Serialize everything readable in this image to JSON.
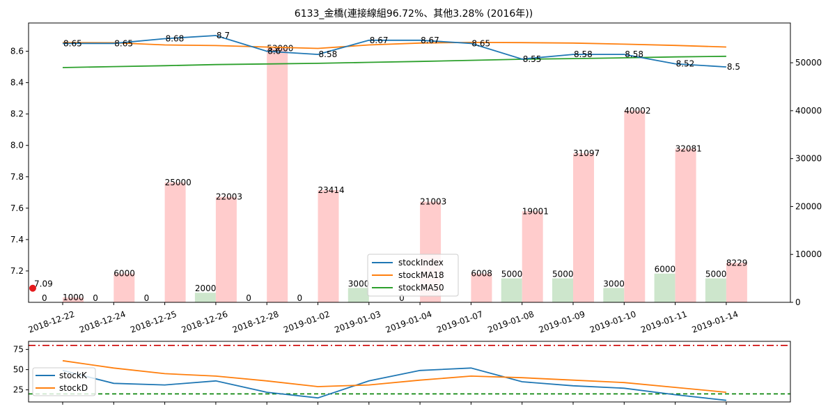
{
  "chart_data": [
    {
      "type": "bar+line",
      "title": "6133_金橋(連接線組96.72%、其他3.28% (2016年))",
      "categories": [
        "2018-12-22",
        "2018-12-24",
        "2018-12-25",
        "2018-12-26",
        "2018-12-28",
        "2019-01-02",
        "2019-01-03",
        "2019-01-04",
        "2019-01-07",
        "2019-01-08",
        "2019-01-09",
        "2019-01-10",
        "2019-01-11",
        "2019-01-14"
      ],
      "y_left": {
        "range": [
          7.0,
          8.78
        ],
        "ticks": [
          "7.2",
          "7.4",
          "7.6",
          "7.8",
          "8.0",
          "8.2",
          "8.4",
          "8.6"
        ],
        "tick_values": [
          7.2,
          7.4,
          7.6,
          7.8,
          8.0,
          8.2,
          8.4,
          8.6
        ]
      },
      "y_right": {
        "range": [
          0,
          58300
        ],
        "ticks": [
          "0",
          "10000",
          "20000",
          "30000",
          "40000",
          "50000"
        ],
        "tick_values": [
          0,
          10000,
          20000,
          30000,
          40000,
          50000
        ]
      },
      "series": [
        {
          "name": "stockIndex",
          "color": "#1f77b4",
          "values": [
            8.65,
            8.65,
            8.68,
            8.7,
            8.6,
            8.58,
            8.67,
            8.67,
            8.65,
            8.55,
            8.58,
            8.58,
            8.52,
            8.5
          ],
          "labels": [
            "8.65",
            "8.65",
            "8.68",
            "8.7",
            "8.6",
            "8.58",
            "8.67",
            "8.67",
            "8.65",
            "8.55",
            "8.58",
            "8.58",
            "8.52",
            "8.5"
          ]
        },
        {
          "name": "stockMA18",
          "color": "#ff7f0e",
          "values": [
            8.655,
            8.654,
            8.64,
            8.636,
            8.627,
            8.618,
            8.64,
            8.652,
            8.656,
            8.655,
            8.652,
            8.645,
            8.637,
            8.627
          ]
        },
        {
          "name": "stockMA50",
          "color": "#2ca02c",
          "values": [
            8.496,
            8.502,
            8.508,
            8.515,
            8.519,
            8.523,
            8.529,
            8.535,
            8.542,
            8.549,
            8.553,
            8.558,
            8.564,
            8.568
          ]
        }
      ],
      "bars": {
        "green": {
          "color": "#cde6cc",
          "values": [
            0,
            0,
            0,
            2000,
            0,
            0,
            3000,
            0,
            0,
            5000,
            5000,
            3000,
            6000,
            5000
          ],
          "labels": [
            "0",
            "0",
            "0",
            "2000",
            "0",
            "0",
            "3000",
            "0",
            "",
            "5000",
            "5000",
            "3000",
            "6000",
            "5000"
          ]
        },
        "red": {
          "color": "#ffcccc",
          "values": [
            1000,
            6000,
            25000,
            22003,
            53000,
            23414,
            0,
            21003,
            6008,
            19001,
            31097,
            40002,
            32081,
            8229
          ],
          "labels": [
            "1000",
            "6000",
            "25000",
            "22003",
            "53000",
            "23414",
            "",
            "21003",
            "6008",
            "19001",
            "31097",
            "40002",
            "32081",
            "8229"
          ]
        }
      },
      "marker": {
        "value": 7.09,
        "label": "7.09",
        "color": "#e41a1c"
      },
      "legend": {
        "placement": "lower-center",
        "entries": [
          "stockIndex",
          "stockMA18",
          "stockMA50"
        ]
      }
    },
    {
      "type": "line",
      "y_left": {
        "range": [
          10,
          85
        ],
        "ticks": [
          "25",
          "50",
          "75"
        ],
        "tick_values": [
          25,
          50,
          75
        ]
      },
      "hlines": [
        {
          "value": 80,
          "color": "#cc0000",
          "style": "dashdot"
        },
        {
          "value": 20,
          "color": "#008000",
          "style": "dashed"
        }
      ],
      "series": [
        {
          "name": "stockK",
          "color": "#1f77b4",
          "values": [
            49,
            33,
            31,
            36,
            22,
            15,
            36,
            49,
            52,
            35,
            30,
            27,
            19,
            12
          ]
        },
        {
          "name": "stockD",
          "color": "#ff7f0e",
          "values": [
            61,
            52,
            45,
            42,
            36,
            29,
            31,
            37,
            42,
            40,
            37,
            34,
            28,
            22
          ]
        }
      ],
      "legend": {
        "placement": "left",
        "entries": [
          "stockK",
          "stockD"
        ]
      }
    }
  ]
}
